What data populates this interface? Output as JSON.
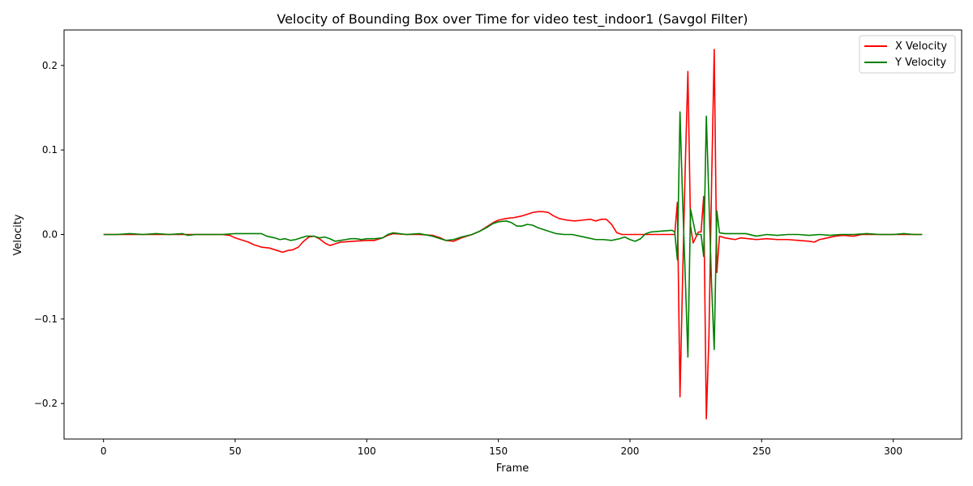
{
  "chart_data": {
    "type": "line",
    "title": "Velocity of Bounding Box over Time for video test_indoor1 (Savgol Filter)",
    "xlabel": "Frame",
    "ylabel": "Velocity",
    "xlim": [
      -15,
      326
    ],
    "ylim": [
      -0.242,
      0.242
    ],
    "x_ticks": [
      0,
      50,
      100,
      150,
      200,
      250,
      300
    ],
    "y_ticks": [
      -0.2,
      -0.1,
      0.0,
      0.1,
      0.2
    ],
    "y_tick_labels": [
      "−0.2",
      "−0.1",
      "0.0",
      "0.1",
      "0.2"
    ],
    "grid": false,
    "legend": "top-right",
    "colors": {
      "x_velocity": "#ff0000",
      "y_velocity": "#008000"
    },
    "series": [
      {
        "name": "X Velocity",
        "color": "#ff0000",
        "points": [
          [
            0,
            0
          ],
          [
            5,
            0
          ],
          [
            10,
            0
          ],
          [
            15,
            0
          ],
          [
            20,
            0
          ],
          [
            25,
            0
          ],
          [
            30,
            0
          ],
          [
            35,
            0
          ],
          [
            40,
            0
          ],
          [
            45,
            0
          ],
          [
            48,
            -0.001
          ],
          [
            50,
            -0.004
          ],
          [
            52,
            -0.006
          ],
          [
            55,
            -0.009
          ],
          [
            57,
            -0.012
          ],
          [
            60,
            -0.015
          ],
          [
            63,
            -0.016
          ],
          [
            66,
            -0.019
          ],
          [
            68,
            -0.021
          ],
          [
            70,
            -0.019
          ],
          [
            72,
            -0.018
          ],
          [
            74,
            -0.015
          ],
          [
            76,
            -0.008
          ],
          [
            78,
            -0.003
          ],
          [
            80,
            -0.002
          ],
          [
            82,
            -0.005
          ],
          [
            84,
            -0.01
          ],
          [
            86,
            -0.013
          ],
          [
            88,
            -0.011
          ],
          [
            90,
            -0.009
          ],
          [
            95,
            -0.008
          ],
          [
            100,
            -0.007
          ],
          [
            103,
            -0.007
          ],
          [
            106,
            -0.004
          ],
          [
            108,
            -0.001
          ],
          [
            110,
            0.001
          ],
          [
            115,
            0
          ],
          [
            120,
            0
          ],
          [
            125,
            -0.001
          ],
          [
            128,
            -0.004
          ],
          [
            130,
            -0.007
          ],
          [
            133,
            -0.008
          ],
          [
            136,
            -0.004
          ],
          [
            140,
            0
          ],
          [
            143,
            0.004
          ],
          [
            146,
            0.01
          ],
          [
            148,
            0.014
          ],
          [
            150,
            0.017
          ],
          [
            153,
            0.019
          ],
          [
            156,
            0.02
          ],
          [
            159,
            0.022
          ],
          [
            161,
            0.024
          ],
          [
            163,
            0.026
          ],
          [
            165,
            0.027
          ],
          [
            167,
            0.027
          ],
          [
            169,
            0.026
          ],
          [
            171,
            0.022
          ],
          [
            173,
            0.019
          ],
          [
            176,
            0.017
          ],
          [
            179,
            0.016
          ],
          [
            182,
            0.017
          ],
          [
            185,
            0.018
          ],
          [
            187,
            0.016
          ],
          [
            189,
            0.018
          ],
          [
            191,
            0.018
          ],
          [
            193,
            0.012
          ],
          [
            195,
            0.002
          ],
          [
            197,
            0
          ],
          [
            200,
            0
          ],
          [
            205,
            0
          ],
          [
            210,
            0
          ],
          [
            215,
            0
          ],
          [
            217,
            0
          ],
          [
            218,
            0.038
          ],
          [
            219,
            -0.192
          ],
          [
            220,
            -0.05
          ],
          [
            221,
            0.08
          ],
          [
            222,
            0.193
          ],
          [
            223,
            0.01
          ],
          [
            224,
            -0.01
          ],
          [
            226,
            0.003
          ],
          [
            227,
            0.003
          ],
          [
            228,
            0.045
          ],
          [
            229,
            -0.218
          ],
          [
            230,
            -0.12
          ],
          [
            231,
            0.06
          ],
          [
            232,
            0.219
          ],
          [
            233,
            -0.045
          ],
          [
            234,
            -0.002
          ],
          [
            236,
            -0.004
          ],
          [
            238,
            -0.005
          ],
          [
            240,
            -0.006
          ],
          [
            242,
            -0.004
          ],
          [
            245,
            -0.005
          ],
          [
            248,
            -0.006
          ],
          [
            252,
            -0.005
          ],
          [
            256,
            -0.006
          ],
          [
            260,
            -0.006
          ],
          [
            264,
            -0.007
          ],
          [
            268,
            -0.008
          ],
          [
            270,
            -0.009
          ],
          [
            272,
            -0.006
          ],
          [
            275,
            -0.004
          ],
          [
            278,
            -0.002
          ],
          [
            281,
            -0.001
          ],
          [
            285,
            -0.002
          ],
          [
            288,
            0
          ],
          [
            292,
            0
          ],
          [
            296,
            0
          ],
          [
            300,
            0
          ],
          [
            305,
            0
          ],
          [
            308,
            0
          ],
          [
            311,
            0
          ]
        ]
      },
      {
        "name": "Y Velocity",
        "color": "#008000",
        "points": [
          [
            0,
            0
          ],
          [
            5,
            0
          ],
          [
            10,
            0.001
          ],
          [
            15,
            0
          ],
          [
            20,
            0.001
          ],
          [
            25,
            0
          ],
          [
            30,
            0.001
          ],
          [
            32,
            -0.001
          ],
          [
            35,
            0
          ],
          [
            40,
            0
          ],
          [
            45,
            0
          ],
          [
            50,
            0.001
          ],
          [
            55,
            0.001
          ],
          [
            60,
            0.001
          ],
          [
            62,
            -0.002
          ],
          [
            65,
            -0.004
          ],
          [
            67,
            -0.006
          ],
          [
            69,
            -0.005
          ],
          [
            71,
            -0.007
          ],
          [
            73,
            -0.006
          ],
          [
            75,
            -0.004
          ],
          [
            77,
            -0.002
          ],
          [
            80,
            -0.002
          ],
          [
            82,
            -0.004
          ],
          [
            84,
            -0.003
          ],
          [
            86,
            -0.005
          ],
          [
            88,
            -0.008
          ],
          [
            90,
            -0.007
          ],
          [
            92,
            -0.006
          ],
          [
            94,
            -0.005
          ],
          [
            96,
            -0.005
          ],
          [
            98,
            -0.006
          ],
          [
            100,
            -0.005
          ],
          [
            103,
            -0.005
          ],
          [
            106,
            -0.004
          ],
          [
            108,
            0
          ],
          [
            110,
            0.002
          ],
          [
            115,
            0
          ],
          [
            120,
            0.001
          ],
          [
            125,
            -0.002
          ],
          [
            128,
            -0.005
          ],
          [
            130,
            -0.007
          ],
          [
            133,
            -0.006
          ],
          [
            136,
            -0.003
          ],
          [
            140,
            0
          ],
          [
            143,
            0.004
          ],
          [
            146,
            0.009
          ],
          [
            148,
            0.013
          ],
          [
            150,
            0.015
          ],
          [
            153,
            0.016
          ],
          [
            155,
            0.014
          ],
          [
            157,
            0.01
          ],
          [
            159,
            0.01
          ],
          [
            161,
            0.012
          ],
          [
            163,
            0.011
          ],
          [
            165,
            0.008
          ],
          [
            167,
            0.006
          ],
          [
            169,
            0.004
          ],
          [
            172,
            0.001
          ],
          [
            175,
            0
          ],
          [
            178,
            0
          ],
          [
            181,
            -0.002
          ],
          [
            184,
            -0.004
          ],
          [
            187,
            -0.006
          ],
          [
            190,
            -0.006
          ],
          [
            193,
            -0.007
          ],
          [
            196,
            -0.005
          ],
          [
            198,
            -0.003
          ],
          [
            200,
            -0.006
          ],
          [
            202,
            -0.008
          ],
          [
            204,
            -0.005
          ],
          [
            206,
            0.001
          ],
          [
            208,
            0.003
          ],
          [
            212,
            0.004
          ],
          [
            216,
            0.005
          ],
          [
            217,
            0.003
          ],
          [
            218,
            -0.03
          ],
          [
            219,
            0.145
          ],
          [
            220,
            0.04
          ],
          [
            221,
            -0.05
          ],
          [
            222,
            -0.145
          ],
          [
            223,
            0.03
          ],
          [
            224,
            0.015
          ],
          [
            225,
            0
          ],
          [
            227,
            0
          ],
          [
            228,
            -0.026
          ],
          [
            229,
            0.14
          ],
          [
            230,
            0.04
          ],
          [
            231,
            -0.06
          ],
          [
            232,
            -0.136
          ],
          [
            233,
            0.028
          ],
          [
            234,
            0.002
          ],
          [
            236,
            0.001
          ],
          [
            240,
            0.001
          ],
          [
            244,
            0.001
          ],
          [
            248,
            -0.002
          ],
          [
            252,
            0
          ],
          [
            256,
            -0.001
          ],
          [
            260,
            0
          ],
          [
            264,
            0
          ],
          [
            268,
            -0.001
          ],
          [
            272,
            0
          ],
          [
            276,
            -0.001
          ],
          [
            280,
            0
          ],
          [
            285,
            0
          ],
          [
            290,
            0.001
          ],
          [
            295,
            0
          ],
          [
            300,
            0
          ],
          [
            304,
            0.001
          ],
          [
            308,
            0
          ],
          [
            311,
            0
          ]
        ]
      }
    ]
  }
}
